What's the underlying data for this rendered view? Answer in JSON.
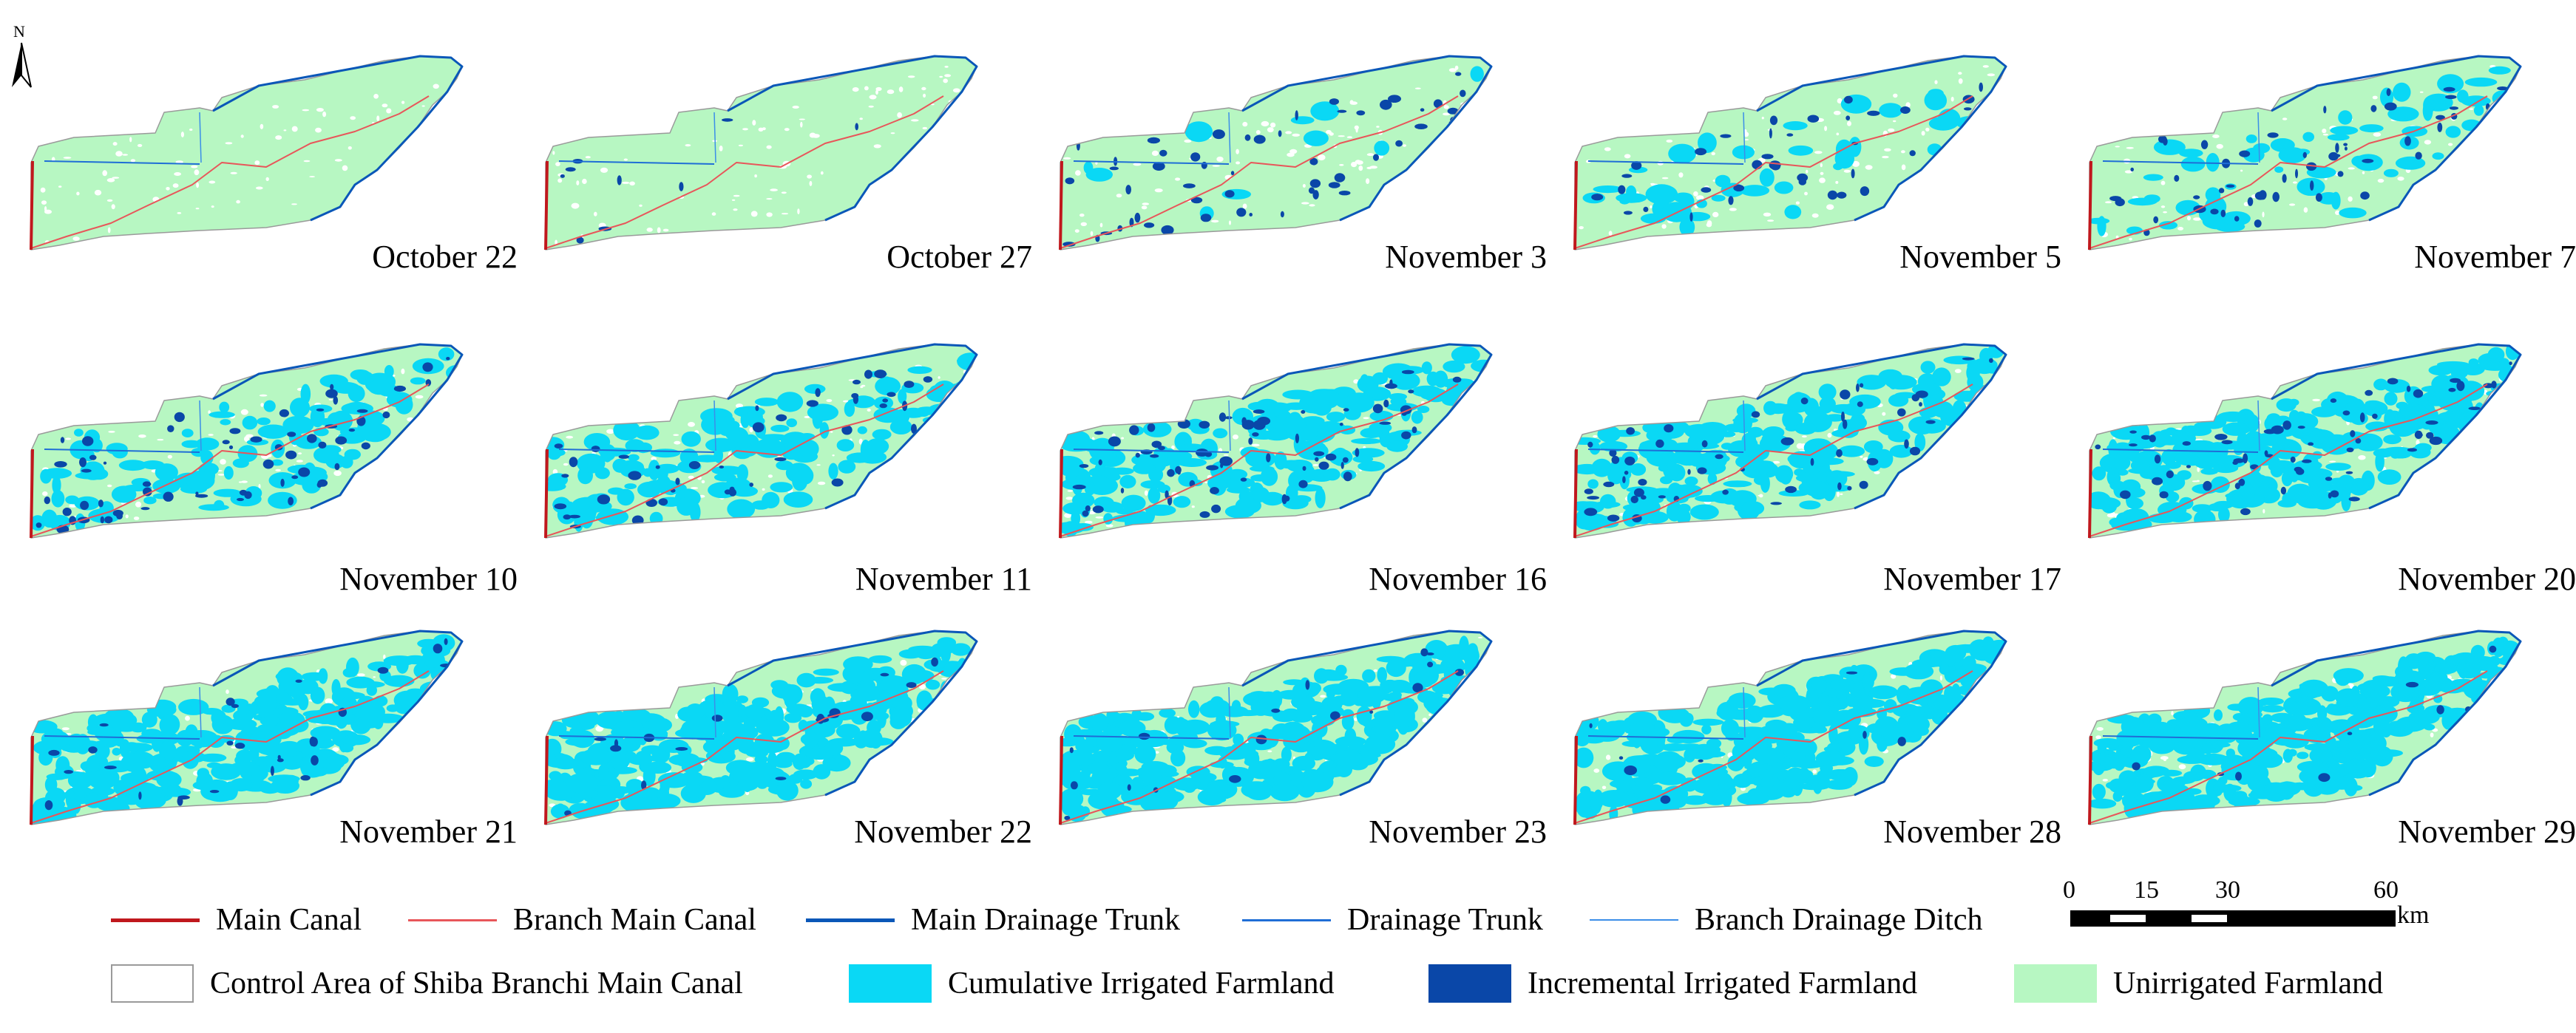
{
  "north_label": "N",
  "colors": {
    "main_canal": "#c0181d",
    "branch_main_canal": "#e8565a",
    "main_drainage_trunk": "#0a57b8",
    "drainage_trunk": "#1f6ed6",
    "branch_drainage_ditch": "#3b8ee8",
    "cumulative_irrigated": "#0ad8f5",
    "incremental_irrigated": "#0a47a8",
    "unirrigated": "#b7f7c2",
    "control_area_border": "#9a9a9a"
  },
  "panels": [
    {
      "date": "October 22",
      "cumulative_fraction": 0.0,
      "incremental_fraction": 0.0
    },
    {
      "date": "October 27",
      "cumulative_fraction": 0.0,
      "incremental_fraction": 0.01
    },
    {
      "date": "November 3",
      "cumulative_fraction": 0.02,
      "incremental_fraction": 0.06
    },
    {
      "date": "November 5",
      "cumulative_fraction": 0.08,
      "incremental_fraction": 0.04
    },
    {
      "date": "November 7",
      "cumulative_fraction": 0.12,
      "incremental_fraction": 0.06
    },
    {
      "date": "November 10",
      "cumulative_fraction": 0.22,
      "incremental_fraction": 0.07
    },
    {
      "date": "November 11",
      "cumulative_fraction": 0.3,
      "incremental_fraction": 0.05
    },
    {
      "date": "November 16",
      "cumulative_fraction": 0.38,
      "incremental_fraction": 0.08
    },
    {
      "date": "November 17",
      "cumulative_fraction": 0.42,
      "incremental_fraction": 0.06
    },
    {
      "date": "November 20",
      "cumulative_fraction": 0.5,
      "incremental_fraction": 0.07
    },
    {
      "date": "November 21",
      "cumulative_fraction": 0.55,
      "incremental_fraction": 0.03
    },
    {
      "date": "November 22",
      "cumulative_fraction": 0.58,
      "incremental_fraction": 0.02
    },
    {
      "date": "November 23",
      "cumulative_fraction": 0.6,
      "incremental_fraction": 0.02
    },
    {
      "date": "November 28",
      "cumulative_fraction": 0.62,
      "incremental_fraction": 0.01
    },
    {
      "date": "November 29",
      "cumulative_fraction": 0.62,
      "incremental_fraction": 0.01
    }
  ],
  "legend": {
    "line_items": [
      {
        "label": "Main Canal",
        "color": "#c0181d"
      },
      {
        "label": "Branch Main Canal",
        "color": "#e8565a"
      },
      {
        "label": "Main Drainage Trunk",
        "color": "#0a57b8"
      },
      {
        "label": "Drainage Trunk",
        "color": "#1f6ed6"
      },
      {
        "label": "Branch Drainage Ditch",
        "color": "#3b8ee8"
      }
    ],
    "area_items": [
      {
        "label": "Control Area of Shiba Branchi Main Canal",
        "color": "#ffffff",
        "border": "#9a9a9a"
      },
      {
        "label": "Cumulative Irrigated Farmland",
        "color": "#0ad8f5",
        "border": "#0ad8f5"
      },
      {
        "label": "Incremental Irrigated Farmland",
        "color": "#0a47a8",
        "border": "#0a47a8"
      },
      {
        "label": "Unirrigated Farmland",
        "color": "#b7f7c2",
        "border": "#b7f7c2"
      }
    ]
  },
  "scale": {
    "ticks": [
      "0",
      "15",
      "30",
      "60"
    ],
    "unit": "km"
  }
}
